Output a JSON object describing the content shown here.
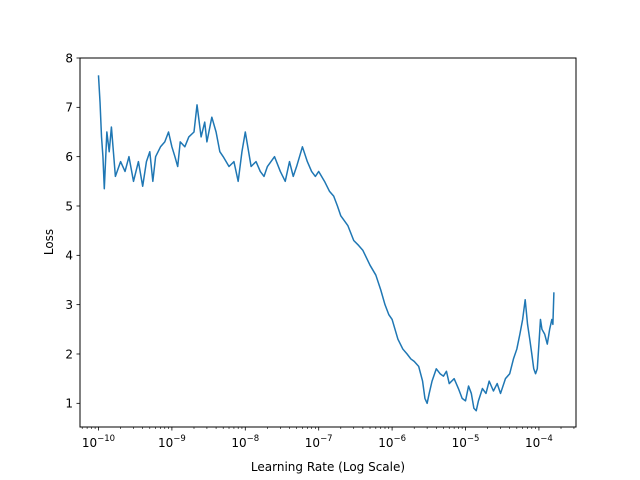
{
  "chart_data": {
    "type": "line",
    "xlabel": "Learning Rate (Log Scale)",
    "ylabel": "Loss",
    "x_scale": "log",
    "xlim": [
      5.6e-11,
      0.00032
    ],
    "ylim": [
      0.52,
      8.0
    ],
    "grid": false,
    "colors": {
      "series": "#1f77b4"
    },
    "x_ticks": [
      {
        "value": 1e-10,
        "base": "10",
        "exp": "−10"
      },
      {
        "value": 1e-09,
        "base": "10",
        "exp": "−9"
      },
      {
        "value": 1e-08,
        "base": "10",
        "exp": "−8"
      },
      {
        "value": 1e-07,
        "base": "10",
        "exp": "−7"
      },
      {
        "value": 1e-06,
        "base": "10",
        "exp": "−6"
      },
      {
        "value": 1e-05,
        "base": "10",
        "exp": "−5"
      },
      {
        "value": 0.0001,
        "base": "10",
        "exp": "−4"
      }
    ],
    "y_ticks": [
      1,
      2,
      3,
      4,
      5,
      6,
      7,
      8
    ],
    "series": [
      {
        "points": [
          [
            1e-10,
            7.65
          ],
          [
            1.05e-10,
            7.1
          ],
          [
            1.1e-10,
            6.4
          ],
          [
            1.15e-10,
            6.0
          ],
          [
            1.2e-10,
            5.35
          ],
          [
            1.3e-10,
            6.5
          ],
          [
            1.4e-10,
            6.1
          ],
          [
            1.5e-10,
            6.6
          ],
          [
            1.7e-10,
            5.6
          ],
          [
            2e-10,
            5.9
          ],
          [
            2.3e-10,
            5.7
          ],
          [
            2.6e-10,
            6.0
          ],
          [
            3e-10,
            5.5
          ],
          [
            3.5e-10,
            5.9
          ],
          [
            4e-10,
            5.4
          ],
          [
            4.5e-10,
            5.9
          ],
          [
            5e-10,
            6.1
          ],
          [
            5.5e-10,
            5.5
          ],
          [
            6e-10,
            6.0
          ],
          [
            7e-10,
            6.2
          ],
          [
            8e-10,
            6.3
          ],
          [
            9e-10,
            6.5
          ],
          [
            1e-09,
            6.2
          ],
          [
            1.1e-09,
            6.0
          ],
          [
            1.2e-09,
            5.8
          ],
          [
            1.3e-09,
            6.3
          ],
          [
            1.5e-09,
            6.2
          ],
          [
            1.7e-09,
            6.4
          ],
          [
            2e-09,
            6.5
          ],
          [
            2.2e-09,
            7.05
          ],
          [
            2.5e-09,
            6.4
          ],
          [
            2.8e-09,
            6.7
          ],
          [
            3e-09,
            6.3
          ],
          [
            3.5e-09,
            6.8
          ],
          [
            4e-09,
            6.5
          ],
          [
            4.5e-09,
            6.1
          ],
          [
            5e-09,
            6.0
          ],
          [
            6e-09,
            5.8
          ],
          [
            7e-09,
            5.9
          ],
          [
            8e-09,
            5.5
          ],
          [
            9e-09,
            6.1
          ],
          [
            1e-08,
            6.5
          ],
          [
            1.2e-08,
            5.8
          ],
          [
            1.4e-08,
            5.9
          ],
          [
            1.6e-08,
            5.7
          ],
          [
            1.8e-08,
            5.6
          ],
          [
            2e-08,
            5.8
          ],
          [
            2.5e-08,
            6.0
          ],
          [
            3e-08,
            5.7
          ],
          [
            3.5e-08,
            5.5
          ],
          [
            4e-08,
            5.9
          ],
          [
            4.5e-08,
            5.6
          ],
          [
            5e-08,
            5.8
          ],
          [
            6e-08,
            6.2
          ],
          [
            7e-08,
            5.9
          ],
          [
            8e-08,
            5.7
          ],
          [
            9e-08,
            5.6
          ],
          [
            1e-07,
            5.7
          ],
          [
            1.2e-07,
            5.5
          ],
          [
            1.4e-07,
            5.3
          ],
          [
            1.6e-07,
            5.2
          ],
          [
            1.8e-07,
            5.0
          ],
          [
            2e-07,
            4.8
          ],
          [
            2.5e-07,
            4.6
          ],
          [
            3e-07,
            4.3
          ],
          [
            3.5e-07,
            4.2
          ],
          [
            4e-07,
            4.1
          ],
          [
            5e-07,
            3.8
          ],
          [
            6e-07,
            3.6
          ],
          [
            7e-07,
            3.3
          ],
          [
            8e-07,
            3.0
          ],
          [
            9e-07,
            2.8
          ],
          [
            1e-06,
            2.7
          ],
          [
            1.2e-06,
            2.3
          ],
          [
            1.4e-06,
            2.1
          ],
          [
            1.6e-06,
            2.0
          ],
          [
            1.8e-06,
            1.9
          ],
          [
            2e-06,
            1.85
          ],
          [
            2.3e-06,
            1.75
          ],
          [
            2.6e-06,
            1.45
          ],
          [
            2.8e-06,
            1.1
          ],
          [
            3e-06,
            1.0
          ],
          [
            3.2e-06,
            1.2
          ],
          [
            3.5e-06,
            1.45
          ],
          [
            4e-06,
            1.7
          ],
          [
            4.5e-06,
            1.6
          ],
          [
            5e-06,
            1.55
          ],
          [
            5.5e-06,
            1.65
          ],
          [
            6e-06,
            1.4
          ],
          [
            7e-06,
            1.5
          ],
          [
            8e-06,
            1.3
          ],
          [
            9e-06,
            1.1
          ],
          [
            1e-05,
            1.05
          ],
          [
            1.1e-05,
            1.35
          ],
          [
            1.2e-05,
            1.2
          ],
          [
            1.3e-05,
            0.9
          ],
          [
            1.4e-05,
            0.85
          ],
          [
            1.5e-05,
            1.05
          ],
          [
            1.7e-05,
            1.3
          ],
          [
            1.9e-05,
            1.2
          ],
          [
            2.1e-05,
            1.45
          ],
          [
            2.4e-05,
            1.25
          ],
          [
            2.7e-05,
            1.4
          ],
          [
            3e-05,
            1.2
          ],
          [
            3.5e-05,
            1.5
          ],
          [
            4e-05,
            1.6
          ],
          [
            4.5e-05,
            1.9
          ],
          [
            5e-05,
            2.1
          ],
          [
            5.5e-05,
            2.4
          ],
          [
            6e-05,
            2.7
          ],
          [
            6.5e-05,
            3.1
          ],
          [
            7e-05,
            2.6
          ],
          [
            7.5e-05,
            2.3
          ],
          [
            8e-05,
            2.0
          ],
          [
            8.5e-05,
            1.7
          ],
          [
            9e-05,
            1.6
          ],
          [
            9.5e-05,
            1.7
          ],
          [
            0.0001,
            2.2
          ],
          [
            0.000105,
            2.7
          ],
          [
            0.00011,
            2.5
          ],
          [
            0.00012,
            2.4
          ],
          [
            0.00013,
            2.2
          ],
          [
            0.00014,
            2.5
          ],
          [
            0.00015,
            2.7
          ],
          [
            0.000155,
            2.6
          ],
          [
            0.00016,
            3.25
          ]
        ]
      }
    ]
  }
}
